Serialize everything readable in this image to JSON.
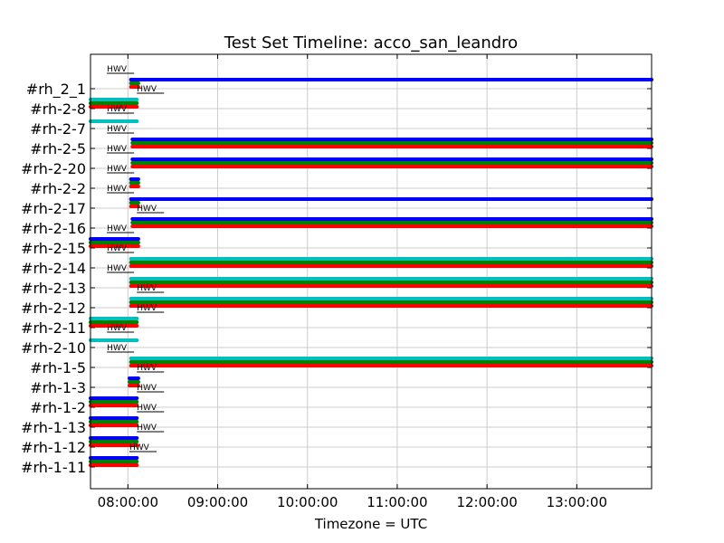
{
  "chart_data": {
    "type": "timeline",
    "title": "Test Set Timeline: acco_san_leandro",
    "xlabel": "Timezone = UTC",
    "xlim": [
      "07:35:00",
      "13:50:00"
    ],
    "xticks": [
      "08:00:00",
      "09:00:00",
      "10:00:00",
      "11:00:00",
      "12:00:00",
      "13:00:00"
    ],
    "grid": true,
    "marker_label": "HWV",
    "colors": {
      "Z": "#0000ff",
      "N": "#00bfbf",
      "E": "#008000",
      "R": "#ff0000"
    },
    "rows": [
      {
        "label": "#rh-1-11",
        "marker_at": "08:01:00",
        "marker_pos": "above",
        "bars": [
          {
            "color": "Z",
            "start": "07:35:00",
            "end": "08:06:00"
          },
          {
            "color": "E",
            "start": "07:35:00",
            "end": "08:06:00"
          },
          {
            "color": "R",
            "start": "07:35:00",
            "end": "08:06:00"
          }
        ]
      },
      {
        "label": "#rh-1-12",
        "marker_at": "08:06:00",
        "marker_pos": "above",
        "bars": [
          {
            "color": "Z",
            "start": "07:35:00",
            "end": "08:06:00"
          },
          {
            "color": "E",
            "start": "07:35:00",
            "end": "08:06:00"
          },
          {
            "color": "R",
            "start": "07:35:00",
            "end": "08:06:00"
          }
        ]
      },
      {
        "label": "#rh-1-13",
        "marker_at": "08:06:00",
        "marker_pos": "above",
        "bars": [
          {
            "color": "Z",
            "start": "07:35:00",
            "end": "08:06:00"
          },
          {
            "color": "E",
            "start": "07:35:00",
            "end": "08:06:00"
          },
          {
            "color": "R",
            "start": "07:35:00",
            "end": "08:06:00"
          }
        ]
      },
      {
        "label": "#rh-1-2",
        "marker_at": "08:06:00",
        "marker_pos": "above",
        "bars": [
          {
            "color": "Z",
            "start": "07:35:00",
            "end": "08:06:00"
          },
          {
            "color": "E",
            "start": "07:35:00",
            "end": "08:06:00"
          },
          {
            "color": "R",
            "start": "07:35:00",
            "end": "08:06:00"
          }
        ]
      },
      {
        "label": "#rh-1-3",
        "marker_at": "08:06:00",
        "marker_pos": "above",
        "bars": [
          {
            "color": "Z",
            "start": "08:01:00",
            "end": "08:07:00"
          },
          {
            "color": "E",
            "start": "08:01:00",
            "end": "08:07:00"
          },
          {
            "color": "R",
            "start": "08:01:00",
            "end": "08:07:00"
          }
        ]
      },
      {
        "label": "#rh-1-5",
        "marker_at": "07:46:00",
        "marker_pos": "above",
        "bars": [
          {
            "color": "N",
            "start": "08:02:00",
            "end": "13:50:00"
          },
          {
            "color": "E",
            "start": "08:02:00",
            "end": "13:50:00"
          },
          {
            "color": "R",
            "start": "08:02:00",
            "end": "13:50:00"
          }
        ]
      },
      {
        "label": "#rh-2-10",
        "marker_at": "07:46:00",
        "marker_pos": "above",
        "bars": [
          {
            "color": "N",
            "start": "07:35:00",
            "end": "08:06:00"
          }
        ]
      },
      {
        "label": "#rh-2-11",
        "marker_at": "08:06:00",
        "marker_pos": "above",
        "bars": [
          {
            "color": "N",
            "start": "07:35:00",
            "end": "08:06:00"
          },
          {
            "color": "E",
            "start": "07:35:00",
            "end": "08:06:00"
          },
          {
            "color": "R",
            "start": "07:35:00",
            "end": "08:06:00"
          }
        ]
      },
      {
        "label": "#rh-2-12",
        "marker_at": "08:06:00",
        "marker_pos": "above",
        "bars": [
          {
            "color": "N",
            "start": "08:02:00",
            "end": "13:50:00"
          },
          {
            "color": "E",
            "start": "08:02:00",
            "end": "13:50:00"
          },
          {
            "color": "R",
            "start": "08:02:00",
            "end": "13:50:00"
          }
        ]
      },
      {
        "label": "#rh-2-13",
        "marker_at": "07:46:00",
        "marker_pos": "above",
        "bars": [
          {
            "color": "N",
            "start": "08:02:00",
            "end": "13:50:00"
          },
          {
            "color": "E",
            "start": "08:02:00",
            "end": "13:50:00"
          },
          {
            "color": "R",
            "start": "08:02:00",
            "end": "13:50:00"
          }
        ]
      },
      {
        "label": "#rh-2-14",
        "marker_at": "07:46:00",
        "marker_pos": "above",
        "bars": [
          {
            "color": "N",
            "start": "08:02:00",
            "end": "13:50:00"
          },
          {
            "color": "E",
            "start": "08:02:00",
            "end": "13:50:00"
          },
          {
            "color": "R",
            "start": "08:02:00",
            "end": "13:50:00"
          }
        ]
      },
      {
        "label": "#rh-2-15",
        "marker_at": "07:46:00",
        "marker_pos": "above",
        "bars": [
          {
            "color": "Z",
            "start": "07:35:00",
            "end": "08:07:00"
          },
          {
            "color": "E",
            "start": "07:35:00",
            "end": "08:07:00"
          },
          {
            "color": "R",
            "start": "07:35:00",
            "end": "08:07:00"
          }
        ]
      },
      {
        "label": "#rh-2-16",
        "marker_at": "08:06:00",
        "marker_pos": "above",
        "bars": [
          {
            "color": "Z",
            "start": "08:03:00",
            "end": "13:50:00"
          },
          {
            "color": "E",
            "start": "08:03:00",
            "end": "13:50:00"
          },
          {
            "color": "R",
            "start": "08:03:00",
            "end": "13:50:00"
          }
        ]
      },
      {
        "label": "#rh-2-17",
        "marker_at": "07:46:00",
        "marker_pos": "above",
        "bars": [
          {
            "color": "Z",
            "start": "08:02:00",
            "end": "13:50:00"
          },
          {
            "color": "E",
            "start": "08:02:00",
            "end": "08:07:00"
          },
          {
            "color": "R",
            "start": "08:02:00",
            "end": "08:07:00"
          }
        ]
      },
      {
        "label": "#rh-2-2",
        "marker_at": "07:46:00",
        "marker_pos": "above",
        "bars": [
          {
            "color": "Z",
            "start": "08:02:00",
            "end": "08:07:00"
          },
          {
            "color": "E",
            "start": "08:02:00",
            "end": "08:07:00"
          },
          {
            "color": "R",
            "start": "08:02:00",
            "end": "08:07:00"
          }
        ]
      },
      {
        "label": "#rh-2-20",
        "marker_at": "07:46:00",
        "marker_pos": "above",
        "bars": [
          {
            "color": "Z",
            "start": "08:03:00",
            "end": "13:50:00"
          },
          {
            "color": "E",
            "start": "08:03:00",
            "end": "13:50:00"
          },
          {
            "color": "R",
            "start": "08:03:00",
            "end": "13:50:00"
          }
        ]
      },
      {
        "label": "#rh-2-5",
        "marker_at": "07:46:00",
        "marker_pos": "above",
        "bars": [
          {
            "color": "Z",
            "start": "08:03:00",
            "end": "13:50:00"
          },
          {
            "color": "E",
            "start": "08:03:00",
            "end": "13:50:00"
          },
          {
            "color": "R",
            "start": "08:03:00",
            "end": "13:50:00"
          }
        ]
      },
      {
        "label": "#rh-2-7",
        "marker_at": "07:46:00",
        "marker_pos": "above",
        "bars": [
          {
            "color": "N",
            "start": "07:35:00",
            "end": "08:06:00"
          }
        ]
      },
      {
        "label": "#rh-2-8",
        "marker_at": "08:06:00",
        "marker_pos": "above",
        "bars": [
          {
            "color": "N",
            "start": "07:35:00",
            "end": "08:06:00"
          },
          {
            "color": "E",
            "start": "07:35:00",
            "end": "08:06:00"
          },
          {
            "color": "R",
            "start": "07:35:00",
            "end": "08:06:00"
          }
        ]
      },
      {
        "label": "#rh_2_1",
        "marker_at": "07:46:00",
        "marker_pos": "above",
        "bars": [
          {
            "color": "Z",
            "start": "08:02:00",
            "end": "13:50:00"
          },
          {
            "color": "E",
            "start": "08:02:00",
            "end": "08:07:00"
          },
          {
            "color": "R",
            "start": "08:02:00",
            "end": "08:07:00"
          }
        ]
      }
    ]
  }
}
